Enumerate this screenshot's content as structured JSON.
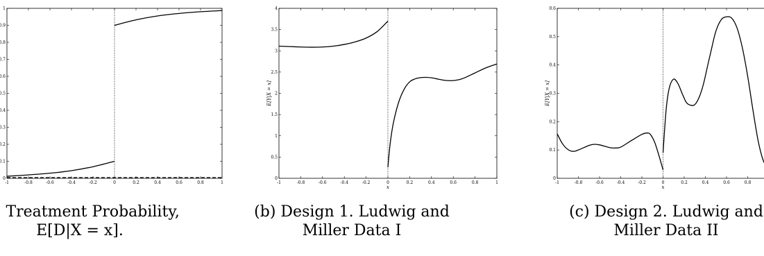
{
  "chart_data": [
    {
      "type": "line",
      "caption_line1": "(a) Treatment Probability,",
      "caption_line2": "E[D|X = x].",
      "xlim": [
        -1,
        1
      ],
      "ylim": [
        0,
        1
      ],
      "xticks": [
        -1,
        -0.8,
        -0.6,
        -0.4,
        -0.2,
        0,
        0.2,
        0.4,
        0.6,
        0.8,
        1
      ],
      "xtick_labels": [
        "-1",
        "-0.8",
        "-0.6",
        "-0.4",
        "-0.2",
        "0",
        "0.2",
        "0.4",
        "0.6",
        "0.8",
        "1"
      ],
      "yticks": [
        0,
        0.1,
        0.2,
        0.3,
        0.4,
        0.5,
        0.6,
        0.7,
        0.8,
        0.9,
        1
      ],
      "ytick_labels": [
        "0",
        "0.1",
        "0.2",
        "0.3",
        "0.4",
        "0.5",
        "0.6",
        "0.7",
        "0.8",
        "0.9",
        "1"
      ],
      "xlabel": "",
      "ylabel": "",
      "cutoff": 0,
      "series": [
        {
          "x": [
            -1,
            -0.8,
            -0.6,
            -0.4,
            -0.2,
            0
          ],
          "y": [
            0.012,
            0.02,
            0.03,
            0.045,
            0.068,
            0.1
          ]
        },
        {
          "x": [
            0,
            0.2,
            0.4,
            0.6,
            0.8,
            1
          ],
          "y": [
            0.9,
            0.932,
            0.955,
            0.97,
            0.98,
            0.987
          ]
        }
      ]
    },
    {
      "type": "line",
      "caption_line1": "(b) Design 1. Ludwig and",
      "caption_line2": "Miller Data I",
      "xlim": [
        -1,
        1
      ],
      "ylim": [
        0,
        4
      ],
      "xticks": [
        -1,
        -0.8,
        -0.6,
        -0.4,
        -0.2,
        0,
        0.2,
        0.4,
        0.6,
        0.8,
        1
      ],
      "xtick_labels": [
        "-1",
        "-0.8",
        "-0.6",
        "-0.4",
        "-0.2",
        "0",
        "0.2",
        "0.4",
        "0.6",
        "0.8",
        "1"
      ],
      "yticks": [
        0,
        0.5,
        1,
        1.5,
        2,
        2.5,
        3,
        3.5,
        4
      ],
      "ytick_labels": [
        "0",
        "0.5",
        "1",
        "1.5",
        "2",
        "2.5",
        "3",
        "3.5",
        "4"
      ],
      "xlabel": "x",
      "ylabel": "E[Y|X = x]",
      "cutoff": 0,
      "series": [
        {
          "x": [
            -1,
            -0.9,
            -0.8,
            -0.7,
            -0.6,
            -0.5,
            -0.4,
            -0.3,
            -0.2,
            -0.1,
            0
          ],
          "y": [
            3.11,
            3.1,
            3.09,
            3.085,
            3.09,
            3.11,
            3.15,
            3.21,
            3.3,
            3.45,
            3.7
          ]
        },
        {
          "x": [
            0,
            0.02,
            0.05,
            0.1,
            0.15,
            0.2,
            0.25,
            0.3,
            0.35,
            0.4,
            0.45,
            0.5,
            0.55,
            0.6,
            0.65,
            0.7,
            0.8,
            0.9,
            1
          ],
          "y": [
            0.26,
            0.8,
            1.3,
            1.8,
            2.1,
            2.27,
            2.34,
            2.37,
            2.375,
            2.365,
            2.34,
            2.315,
            2.3,
            2.3,
            2.32,
            2.36,
            2.48,
            2.6,
            2.69
          ]
        }
      ]
    },
    {
      "type": "line",
      "caption_line1": "(c) Design 2. Ludwig and",
      "caption_line2": "Miller Data II",
      "xlim": [
        -1,
        1
      ],
      "ylim": [
        0,
        0.6
      ],
      "xticks": [
        -1,
        -0.8,
        -0.6,
        -0.4,
        -0.2,
        0,
        0.2,
        0.4,
        0.6,
        0.8,
        1
      ],
      "xtick_labels": [
        "-1",
        "-0.8",
        "-0.6",
        "-0.4",
        "-0.2",
        "0",
        "0.2",
        "0.4",
        "0.6",
        "0.8",
        "1"
      ],
      "yticks": [
        0,
        0.1,
        0.2,
        0.3,
        0.4,
        0.5,
        0.6
      ],
      "ytick_labels": [
        "0",
        "0.1",
        "0.2",
        "0.3",
        "0.4",
        "0.5",
        "0.6"
      ],
      "xlabel": "x",
      "ylabel": "E[Y|X = x]",
      "cutoff": 0,
      "series": [
        {
          "x": [
            -1,
            -0.95,
            -0.9,
            -0.85,
            -0.8,
            -0.7,
            -0.65,
            -0.6,
            -0.5,
            -0.45,
            -0.4,
            -0.3,
            -0.2,
            -0.15,
            -0.12,
            -0.08,
            -0.04,
            0
          ],
          "y": [
            0.157,
            0.122,
            0.102,
            0.095,
            0.1,
            0.116,
            0.12,
            0.118,
            0.108,
            0.107,
            0.11,
            0.133,
            0.155,
            0.16,
            0.155,
            0.128,
            0.082,
            0.03
          ]
        },
        {
          "x": [
            0,
            0.03,
            0.06,
            0.1,
            0.14,
            0.18,
            0.22,
            0.26,
            0.3,
            0.34,
            0.38,
            0.42,
            0.46,
            0.5,
            0.55,
            0.6,
            0.65,
            0.7,
            0.75,
            0.8,
            0.85,
            0.9,
            0.95,
            1
          ],
          "y": [
            0.09,
            0.245,
            0.32,
            0.35,
            0.335,
            0.3,
            0.268,
            0.258,
            0.26,
            0.285,
            0.33,
            0.395,
            0.46,
            0.52,
            0.56,
            0.57,
            0.565,
            0.53,
            0.46,
            0.36,
            0.24,
            0.13,
            0.06,
            0.035
          ]
        }
      ]
    }
  ]
}
